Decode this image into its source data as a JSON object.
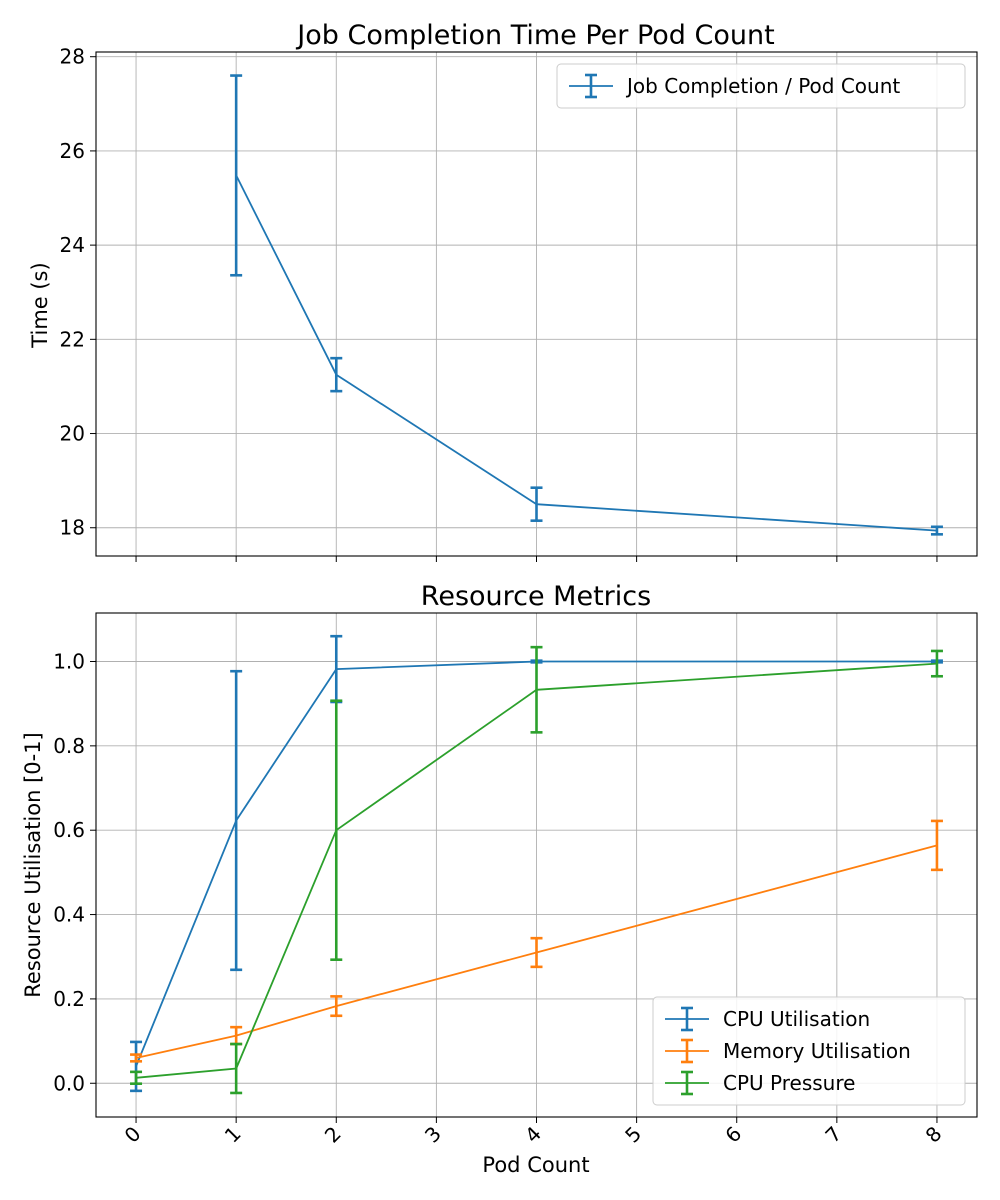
{
  "chart_data": [
    {
      "type": "line",
      "title": "Job Completion Time Per Pod Count",
      "xlabel": "",
      "ylabel": "Time (s)",
      "xlim": [
        -0.4,
        8.4
      ],
      "ylim": [
        17.4,
        28.1
      ],
      "x_ticks": [
        0,
        1,
        2,
        3,
        4,
        5,
        6,
        7,
        8
      ],
      "y_ticks": [
        18,
        20,
        22,
        24,
        26,
        28
      ],
      "y_tick_labels": [
        "18",
        "20",
        "22",
        "24",
        "26",
        "28"
      ],
      "grid": true,
      "legend_position": "upper right",
      "series": [
        {
          "name": "Job Completion / Pod Count",
          "color": "#1f77b4",
          "x": [
            1,
            2,
            4,
            8
          ],
          "y": [
            25.48,
            21.25,
            18.5,
            17.94
          ],
          "yerr": [
            2.12,
            0.35,
            0.35,
            0.08
          ]
        }
      ]
    },
    {
      "type": "line",
      "title": "Resource Metrics",
      "xlabel": "Pod Count",
      "ylabel": "Resource Utilisation [0-1]",
      "xlim": [
        -0.4,
        8.4
      ],
      "ylim": [
        -0.08,
        1.115
      ],
      "x_ticks": [
        0,
        1,
        2,
        3,
        4,
        5,
        6,
        7,
        8
      ],
      "x_tick_labels": [
        "0",
        "1",
        "2",
        "3",
        "4",
        "5",
        "6",
        "7",
        "8"
      ],
      "y_ticks": [
        0.0,
        0.2,
        0.4,
        0.6,
        0.8,
        1.0
      ],
      "y_tick_labels": [
        "0.0",
        "0.2",
        "0.4",
        "0.6",
        "0.8",
        "1.0"
      ],
      "grid": true,
      "legend_position": "lower right",
      "series": [
        {
          "name": "CPU Utilisation",
          "color": "#1f77b4",
          "x": [
            0,
            1,
            2,
            4,
            8
          ],
          "y": [
            0.04,
            0.623,
            0.982,
            1.0,
            1.0
          ],
          "yerr": [
            0.058,
            0.354,
            0.078,
            0.002,
            0.002
          ]
        },
        {
          "name": "Memory Utilisation",
          "color": "#ff7f0e",
          "x": [
            0,
            1,
            2,
            4,
            8
          ],
          "y": [
            0.06,
            0.113,
            0.183,
            0.31,
            0.564
          ],
          "yerr": [
            0.008,
            0.02,
            0.023,
            0.034,
            0.058
          ]
        },
        {
          "name": "CPU Pressure",
          "color": "#2ca02c",
          "x": [
            0,
            1,
            2,
            4,
            8
          ],
          "y": [
            0.013,
            0.035,
            0.6,
            0.933,
            0.995
          ],
          "yerr": [
            0.014,
            0.058,
            0.307,
            0.101,
            0.03
          ]
        }
      ]
    }
  ]
}
